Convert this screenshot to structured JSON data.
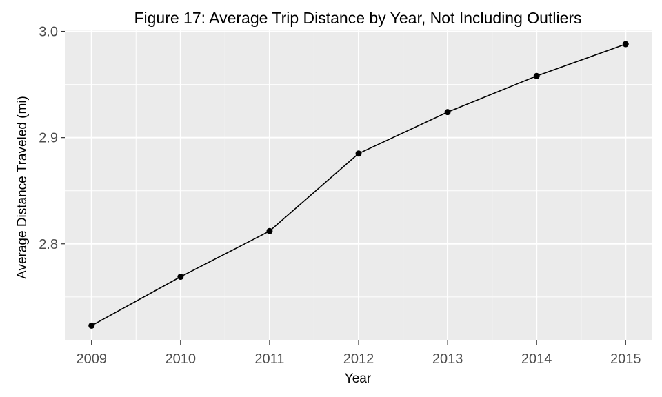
{
  "chart_data": {
    "type": "line",
    "title": "Figure 17: Average Trip Distance by Year, Not Including Outliers",
    "xlabel": "Year",
    "ylabel": "Average Distance Traveled (mi)",
    "x": [
      "2009",
      "2010",
      "2011",
      "2012",
      "2013",
      "2014",
      "2015"
    ],
    "series": [
      {
        "values": [
          2.723,
          2.769,
          2.812,
          2.885,
          2.924,
          2.958,
          2.988
        ]
      }
    ],
    "yticks": [
      2.8,
      2.9,
      3.0
    ],
    "ytick_labels": [
      "2.8",
      "2.9",
      "3.0"
    ],
    "ylim": [
      2.709,
      3.001
    ],
    "grid": true,
    "colors": {
      "panel": "#ebebeb",
      "grid": "#ffffff",
      "line": "#000000",
      "tick_text": "#4d4d4d"
    }
  }
}
